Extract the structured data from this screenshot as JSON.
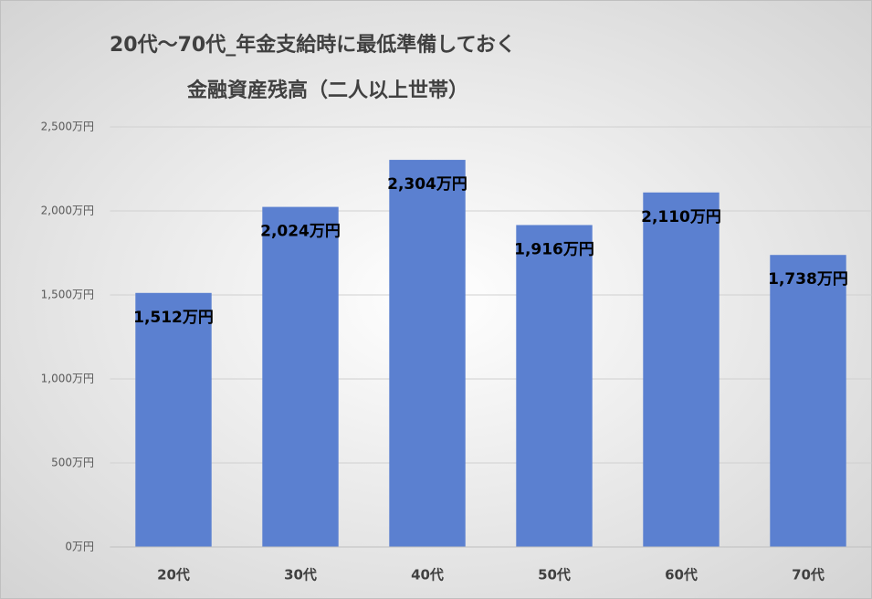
{
  "chart_data": {
    "type": "bar",
    "title": [
      "20代～70代_年金支給時に最低準備しておく",
      "金融資産残高（二人以上世帯）"
    ],
    "categories": [
      "20代",
      "30代",
      "40代",
      "50代",
      "60代",
      "70代"
    ],
    "values": [
      1512,
      2024,
      2304,
      1916,
      2110,
      1738
    ],
    "value_labels": [
      "1,512万円",
      "2,024万円",
      "2,304万円",
      "1,916万円",
      "2,110万円",
      "1,738万円"
    ],
    "color": "#5b80d0",
    "ylim": [
      0,
      2500
    ],
    "yticks": [
      {
        "value": 0,
        "label": "0万円"
      },
      {
        "value": 500,
        "label": "500万円"
      },
      {
        "value": 1000,
        "label": "1,000万円"
      },
      {
        "value": 1500,
        "label": "1,500万円"
      },
      {
        "value": 2000,
        "label": "2,000万円"
      },
      {
        "value": 2500,
        "label": "2,500万円"
      }
    ],
    "grid": true
  }
}
